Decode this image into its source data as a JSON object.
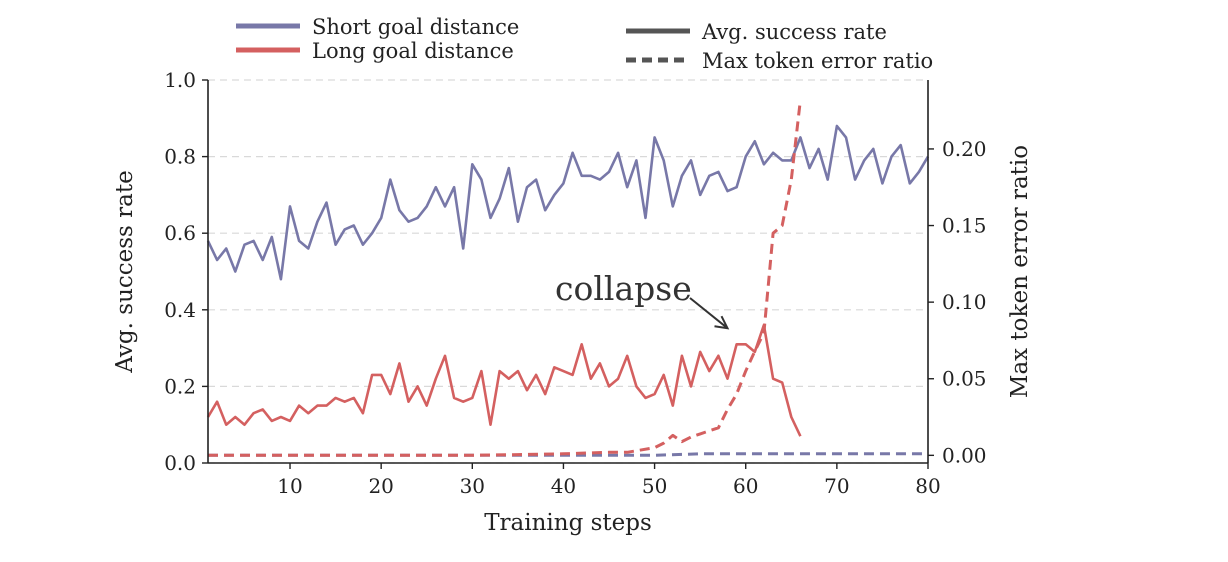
{
  "chart_data": {
    "type": "line",
    "xlabel": "Training steps",
    "ylabel": "Avg. success rate",
    "y2label": "Max token error ratio",
    "xlim": [
      1,
      80
    ],
    "ylim": [
      0,
      1.0
    ],
    "y2lim": [
      -0.005,
      0.245
    ],
    "xticks": [
      "10",
      "20",
      "30",
      "40",
      "50",
      "60",
      "70",
      "80"
    ],
    "yticks": [
      "0.0",
      "0.2",
      "0.4",
      "0.6",
      "0.8",
      "1.0"
    ],
    "y2ticks": [
      "0.00",
      "0.05",
      "0.10",
      "0.15",
      "0.20"
    ],
    "grid": "horizontal dashed",
    "legend_placement": "top",
    "colors": {
      "short": "#7878a8",
      "long": "#d46060"
    },
    "legend": {
      "series": [
        {
          "label": "Short goal distance",
          "color": "#7878a8"
        },
        {
          "label": "Long goal distance",
          "color": "#d46060"
        }
      ],
      "styles": [
        {
          "label": "Avg. success rate",
          "style": "solid"
        },
        {
          "label": "Max token error ratio",
          "style": "dashed"
        }
      ]
    },
    "annotation": {
      "text": "collapse",
      "points_to": [
        58,
        0.083
      ]
    },
    "series": [
      {
        "name": "Short goal distance",
        "metric": "Avg. success rate",
        "axis": "left",
        "style": "solid",
        "color": "#7878a8",
        "x": [
          1,
          2,
          3,
          4,
          5,
          6,
          7,
          8,
          9,
          10,
          11,
          12,
          13,
          14,
          15,
          16,
          17,
          18,
          19,
          20,
          21,
          22,
          23,
          24,
          25,
          26,
          27,
          28,
          29,
          30,
          31,
          32,
          33,
          34,
          35,
          36,
          37,
          38,
          39,
          40,
          41,
          42,
          43,
          44,
          45,
          46,
          47,
          48,
          49,
          50,
          51,
          52,
          53,
          54,
          55,
          56,
          57,
          58,
          59,
          60,
          61,
          62,
          63,
          64,
          65,
          66,
          67,
          68,
          69,
          70,
          71,
          72,
          73,
          74,
          75,
          76,
          77,
          78,
          79,
          80
        ],
        "y": [
          0.58,
          0.53,
          0.56,
          0.5,
          0.57,
          0.58,
          0.53,
          0.59,
          0.48,
          0.67,
          0.58,
          0.56,
          0.63,
          0.68,
          0.57,
          0.61,
          0.62,
          0.57,
          0.6,
          0.64,
          0.74,
          0.66,
          0.63,
          0.64,
          0.67,
          0.72,
          0.67,
          0.72,
          0.56,
          0.78,
          0.74,
          0.64,
          0.69,
          0.77,
          0.63,
          0.72,
          0.74,
          0.66,
          0.7,
          0.73,
          0.81,
          0.75,
          0.75,
          0.74,
          0.76,
          0.81,
          0.72,
          0.79,
          0.64,
          0.85,
          0.79,
          0.67,
          0.75,
          0.79,
          0.7,
          0.75,
          0.76,
          0.71,
          0.72,
          0.8,
          0.84,
          0.78,
          0.81,
          0.79,
          0.79,
          0.85,
          0.77,
          0.82,
          0.74,
          0.88,
          0.85,
          0.74,
          0.79,
          0.82,
          0.73,
          0.8,
          0.83,
          0.73,
          0.76,
          0.8
        ]
      },
      {
        "name": "Long goal distance",
        "metric": "Avg. success rate",
        "axis": "left",
        "style": "solid",
        "color": "#d46060",
        "x": [
          1,
          2,
          3,
          4,
          5,
          6,
          7,
          8,
          9,
          10,
          11,
          12,
          13,
          14,
          15,
          16,
          17,
          18,
          19,
          20,
          21,
          22,
          23,
          24,
          25,
          26,
          27,
          28,
          29,
          30,
          31,
          32,
          33,
          34,
          35,
          36,
          37,
          38,
          39,
          40,
          41,
          42,
          43,
          44,
          45,
          46,
          47,
          48,
          49,
          50,
          51,
          52,
          53,
          54,
          55,
          56,
          57,
          58,
          59,
          60,
          61,
          62,
          63,
          64,
          65,
          66
        ],
        "y": [
          0.12,
          0.16,
          0.1,
          0.12,
          0.1,
          0.13,
          0.14,
          0.11,
          0.12,
          0.11,
          0.15,
          0.13,
          0.15,
          0.15,
          0.17,
          0.16,
          0.17,
          0.13,
          0.23,
          0.23,
          0.18,
          0.26,
          0.16,
          0.2,
          0.15,
          0.22,
          0.28,
          0.17,
          0.16,
          0.17,
          0.24,
          0.1,
          0.24,
          0.22,
          0.24,
          0.19,
          0.23,
          0.18,
          0.25,
          0.24,
          0.23,
          0.31,
          0.22,
          0.26,
          0.2,
          0.22,
          0.28,
          0.2,
          0.17,
          0.18,
          0.23,
          0.15,
          0.28,
          0.2,
          0.29,
          0.24,
          0.28,
          0.22,
          0.31,
          0.31,
          0.29,
          0.36,
          0.22,
          0.21,
          0.12,
          0.07
        ]
      },
      {
        "name": "Short goal distance",
        "metric": "Max token error ratio",
        "axis": "right",
        "style": "dashed",
        "color": "#7878a8",
        "x": [
          1,
          10,
          20,
          30,
          40,
          50,
          55,
          60,
          65,
          70,
          75,
          80
        ],
        "y": [
          0.0,
          0.0,
          0.0,
          0.0,
          0.0,
          0.0,
          0.001,
          0.001,
          0.001,
          0.001,
          0.001,
          0.001
        ]
      },
      {
        "name": "Long goal distance",
        "metric": "Max token error ratio",
        "axis": "right",
        "style": "dashed",
        "color": "#d46060",
        "x": [
          1,
          10,
          20,
          30,
          35,
          40,
          45,
          47,
          50,
          51,
          52,
          53,
          54,
          55,
          56,
          57,
          58,
          59,
          60,
          61,
          62,
          63,
          64,
          65,
          66
        ],
        "y": [
          0.0,
          0.0,
          0.0,
          0.0,
          0.0005,
          0.001,
          0.002,
          0.002,
          0.005,
          0.008,
          0.013,
          0.009,
          0.012,
          0.014,
          0.016,
          0.018,
          0.03,
          0.04,
          0.055,
          0.068,
          0.08,
          0.145,
          0.15,
          0.18,
          0.232
        ]
      }
    ]
  }
}
